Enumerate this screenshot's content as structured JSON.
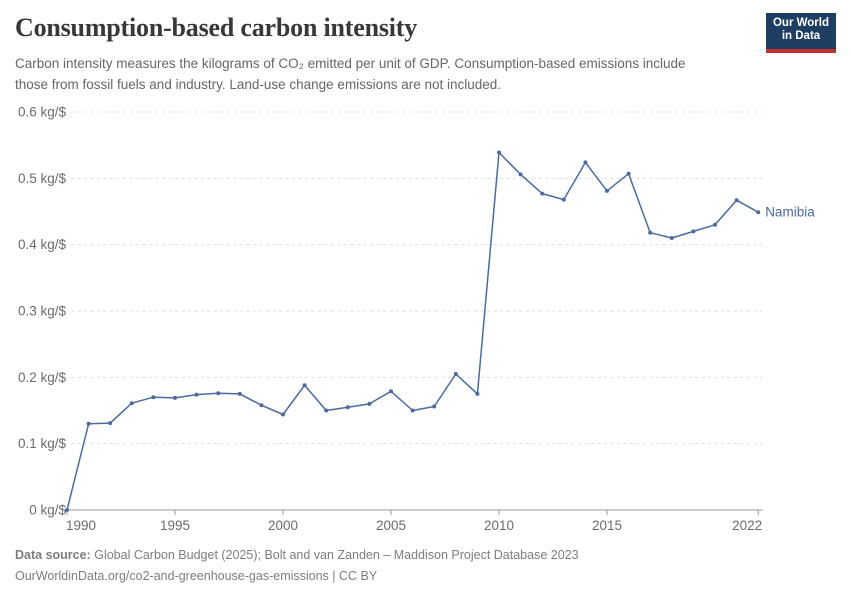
{
  "header": {
    "title": "Consumption-based carbon intensity",
    "subtitle": "Carbon intensity measures the kilograms of CO₂ emitted per unit of GDP. Consumption-based emissions include those from fossil fuels and industry. Land-use change emissions are not included."
  },
  "logo": {
    "line1": "Our World",
    "line2": "in Data"
  },
  "footer": {
    "source_label": "Data source:",
    "source_text": "Global Carbon Budget (2025); Bolt and van Zanden – Maddison Project Database 2023",
    "note": "OurWorldinData.org/co2-and-greenhouse-gas-emissions | CC BY"
  },
  "chart_data": {
    "type": "line",
    "title": "Consumption-based carbon intensity",
    "unit": "kg/$",
    "x": [
      1990,
      1991,
      1992,
      1993,
      1994,
      1995,
      1996,
      1997,
      1998,
      1999,
      2000,
      2001,
      2002,
      2003,
      2004,
      2005,
      2006,
      2007,
      2008,
      2009,
      2010,
      2011,
      2012,
      2013,
      2014,
      2015,
      2016,
      2017,
      2018,
      2019,
      2020,
      2021,
      2022
    ],
    "series": [
      {
        "name": "Namibia",
        "color": "#4C6A9C",
        "values": [
          0,
          0.13,
          0.131,
          0.161,
          0.17,
          0.169,
          0.174,
          0.176,
          0.175,
          0.158,
          0.144,
          0.188,
          0.15,
          0.155,
          0.16,
          0.179,
          0.15,
          0.156,
          0.205,
          0.175,
          0.539,
          0.506,
          0.477,
          0.468,
          0.524,
          0.481,
          0.507,
          0.418,
          0.41,
          0.42,
          0.43,
          0.467,
          0.449
        ]
      }
    ],
    "xlim": [
      1990,
      2022
    ],
    "ylim": [
      0,
      0.6
    ],
    "yticks": [
      0,
      0.1,
      0.2,
      0.3,
      0.4,
      0.5,
      0.6
    ],
    "ytick_suffix": " kg/$",
    "xticks": [
      1990,
      1995,
      2000,
      2005,
      2010,
      2015,
      2022
    ],
    "grid": "horizontal-dashed",
    "legend": "end-of-line-label",
    "colors": {
      "line": "#4C6A9C",
      "grid": "#dddddd",
      "axis": "#999999",
      "tick_label": "#6b6b6b"
    }
  }
}
